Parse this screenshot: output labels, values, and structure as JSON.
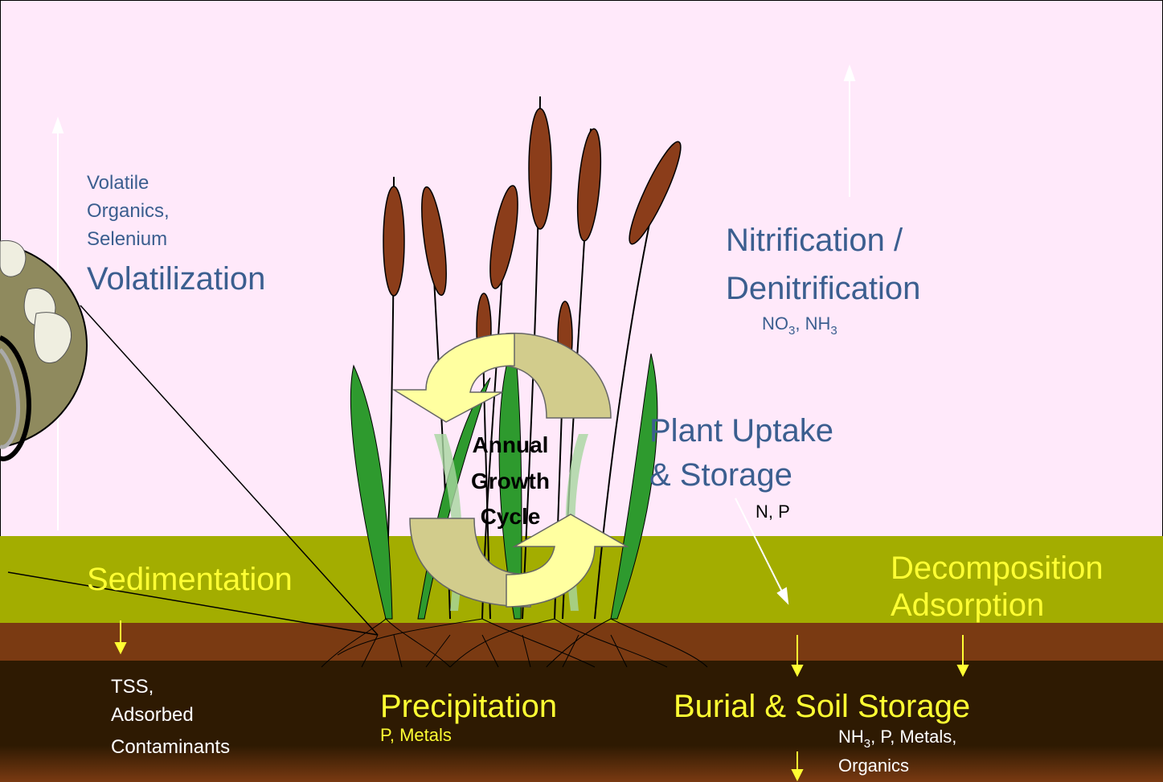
{
  "volatilization": {
    "species": [
      "Volatile",
      "Organics,",
      "Selenium"
    ],
    "title": "Volatilization"
  },
  "nitrification": {
    "title": [
      "Nitrification /",
      "Denitrification"
    ],
    "species": [
      {
        "text": "NO",
        "sub": "3"
      },
      {
        "text": ", NH",
        "sub": "3"
      }
    ]
  },
  "plant_uptake": {
    "title": [
      "Plant Uptake",
      "& Storage"
    ],
    "species": "N, P"
  },
  "cycle": [
    "Annual",
    "Growth",
    "Cycle"
  ],
  "sedimentation": {
    "title": "Sedimentation",
    "species": [
      "TSS,",
      "Adsorbed",
      "Contaminants"
    ]
  },
  "decomposition": [
    "Decomposition",
    "Adsorption"
  ],
  "precipitation": {
    "title": "Precipitation",
    "species": "P, Metals"
  },
  "burial": {
    "title": "Burial & Soil Storage",
    "species": [
      [
        {
          "text": "NH",
          "sub": "3"
        },
        {
          "text": ", P, Metals,"
        }
      ],
      [
        {
          "text": "Organics"
        }
      ]
    ]
  }
}
